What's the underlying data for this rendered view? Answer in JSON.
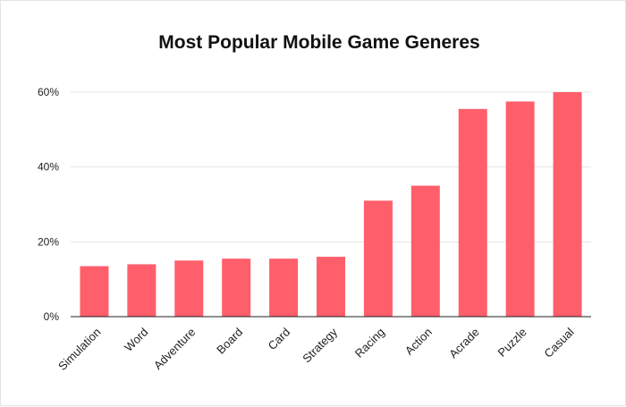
{
  "chart_data": {
    "type": "bar",
    "title": "Most Popular Mobile Game Generes",
    "xlabel": "",
    "ylabel": "",
    "categories": [
      "Simulation",
      "Word",
      "Adventure",
      "Board",
      "Card",
      "Strategy",
      "Racing",
      "Action",
      "Acrade",
      "Puzzle",
      "Casual"
    ],
    "values": [
      13.5,
      14,
      15,
      15.5,
      15.5,
      16,
      31,
      35,
      55.5,
      57.5,
      60
    ],
    "ylim": [
      0,
      60
    ],
    "yticks": [
      0,
      20,
      40,
      60
    ],
    "ytick_labels": [
      "0%",
      "20%",
      "40%",
      "60%"
    ],
    "grid": true,
    "legend": "none",
    "bar_color": "#ff5f6b"
  }
}
